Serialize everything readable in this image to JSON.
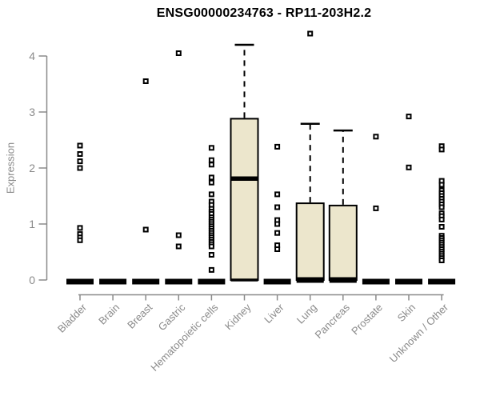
{
  "title": "ENSG00000234763 - RP11-203H2.2",
  "chart_data": {
    "type": "boxplot",
    "title": "ENSG00000234763 - RP11-203H2.2",
    "xlabel": "",
    "ylabel": "Expression",
    "ylim": [
      0,
      4.45
    ],
    "yticks": [
      0,
      1,
      2,
      3,
      4
    ],
    "grid": "off",
    "categories": [
      "Bladder",
      "Brain",
      "Breast",
      "Gastric",
      "Hematopoietic cells",
      "Kidney",
      "Liver",
      "Lung",
      "Pancreas",
      "Prostate",
      "Skin",
      "Unknown / Other"
    ],
    "boxes": [
      {
        "category": "Bladder",
        "min": 0,
        "q1": 0,
        "median": 0,
        "q3": 0,
        "max": 0,
        "outliers": [
          2.4,
          2.25,
          2.12,
          2.0,
          0.93,
          0.82,
          0.76,
          0.71
        ]
      },
      {
        "category": "Brain",
        "min": 0,
        "q1": 0,
        "median": 0,
        "q3": 0,
        "max": 0,
        "outliers": []
      },
      {
        "category": "Breast",
        "min": 0,
        "q1": 0,
        "median": 0,
        "q3": 0,
        "max": 0,
        "outliers": [
          3.55,
          0.9
        ]
      },
      {
        "category": "Gastric",
        "min": 0,
        "q1": 0,
        "median": 0,
        "q3": 0,
        "max": 0,
        "outliers": [
          4.05,
          0.8,
          0.6
        ]
      },
      {
        "category": "Hematopoietic cells",
        "min": 0,
        "q1": 0,
        "median": 0,
        "q3": 0,
        "max": 0,
        "outliers": [
          2.36,
          2.14,
          2.06,
          1.83,
          1.74,
          1.53,
          1.4,
          1.34,
          1.27,
          1.22,
          1.18,
          1.12,
          1.08,
          1.04,
          1.0,
          0.96,
          0.92,
          0.88,
          0.84,
          0.8,
          0.76,
          0.72,
          0.68,
          0.64,
          0.6,
          0.45,
          0.18
        ]
      },
      {
        "category": "Kidney",
        "min": 0,
        "q1": 0,
        "median": 1.81,
        "q3": 2.88,
        "max": 4.2,
        "outliers": []
      },
      {
        "category": "Liver",
        "min": 0,
        "q1": 0,
        "median": 0,
        "q3": 0,
        "max": 0,
        "outliers": [
          2.38,
          1.53,
          1.3,
          1.07,
          1.0,
          0.84,
          0.62,
          0.55
        ]
      },
      {
        "category": "Lung",
        "min": 0,
        "q1": 0,
        "median": 0,
        "q3": 1.37,
        "max": 2.79,
        "outliers": [
          4.4
        ]
      },
      {
        "category": "Pancreas",
        "min": 0,
        "q1": 0,
        "median": 0,
        "q3": 1.33,
        "max": 2.67,
        "outliers": []
      },
      {
        "category": "Prostate",
        "min": 0,
        "q1": 0,
        "median": 0,
        "q3": 0,
        "max": 0,
        "outliers": [
          2.56,
          1.28
        ]
      },
      {
        "category": "Skin",
        "min": 0,
        "q1": 0,
        "median": 0,
        "q3": 0,
        "max": 0,
        "outliers": [
          2.92,
          2.01
        ]
      },
      {
        "category": "Unknown / Other",
        "min": 0,
        "q1": 0,
        "median": 0,
        "q3": 0,
        "max": 0,
        "outliers": [
          2.39,
          2.33,
          1.77,
          1.7,
          1.6,
          1.55,
          1.5,
          1.45,
          1.4,
          1.35,
          1.3,
          1.19,
          1.14,
          1.08,
          0.95,
          0.79,
          0.75,
          0.71,
          0.67,
          0.63,
          0.59,
          0.55,
          0.51,
          0.47,
          0.43,
          0.39,
          0.35
        ]
      }
    ],
    "colors": {
      "box_fill": "#ece6cc",
      "box_stroke": "#000000",
      "median": "#000000",
      "outlier_stroke": "#000000",
      "axis": "#8a8a8a",
      "tick_label": "#8a8a8a",
      "title": "#000000"
    },
    "legend": "none"
  }
}
